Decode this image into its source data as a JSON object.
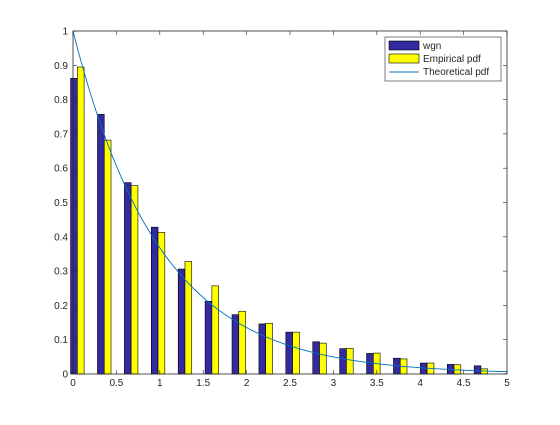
{
  "chart_data": {
    "type": "bar",
    "title": "",
    "xlabel": "",
    "ylabel": "",
    "xlim": [
      0,
      5
    ],
    "ylim": [
      0,
      1
    ],
    "grid": false,
    "legend_position": "top-right",
    "x_ticks": [
      "0",
      "0.5",
      "1",
      "1.5",
      "2",
      "2.5",
      "3",
      "3.5",
      "4",
      "4.5",
      "5"
    ],
    "y_ticks": [
      "0",
      "0.1",
      "0.2",
      "0.3",
      "0.4",
      "0.5",
      "0.6",
      "0.7",
      "0.8",
      "0.9",
      "1"
    ],
    "x": [
      0.05,
      0.36,
      0.67,
      0.98,
      1.29,
      1.6,
      1.91,
      2.22,
      2.53,
      2.84,
      3.15,
      3.46,
      3.77,
      4.08,
      4.39,
      4.7
    ],
    "series": [
      {
        "name": "wgn",
        "kind": "bar",
        "color": "#3329a0",
        "values": [
          0.862,
          0.757,
          0.558,
          0.428,
          0.306,
          0.212,
          0.173,
          0.146,
          0.122,
          0.094,
          0.074,
          0.06,
          0.046,
          0.032,
          0.028,
          0.024
        ]
      },
      {
        "name": "Empirical pdf",
        "kind": "bar",
        "color": "#ffff00",
        "values": [
          0.895,
          0.682,
          0.549,
          0.413,
          0.328,
          0.257,
          0.183,
          0.148,
          0.122,
          0.09,
          0.075,
          0.061,
          0.044,
          0.032,
          0.027,
          0.015
        ]
      },
      {
        "name": "Theoretical pdf",
        "kind": "line",
        "color": "#0072bd",
        "function": "exp(-x)"
      }
    ]
  }
}
